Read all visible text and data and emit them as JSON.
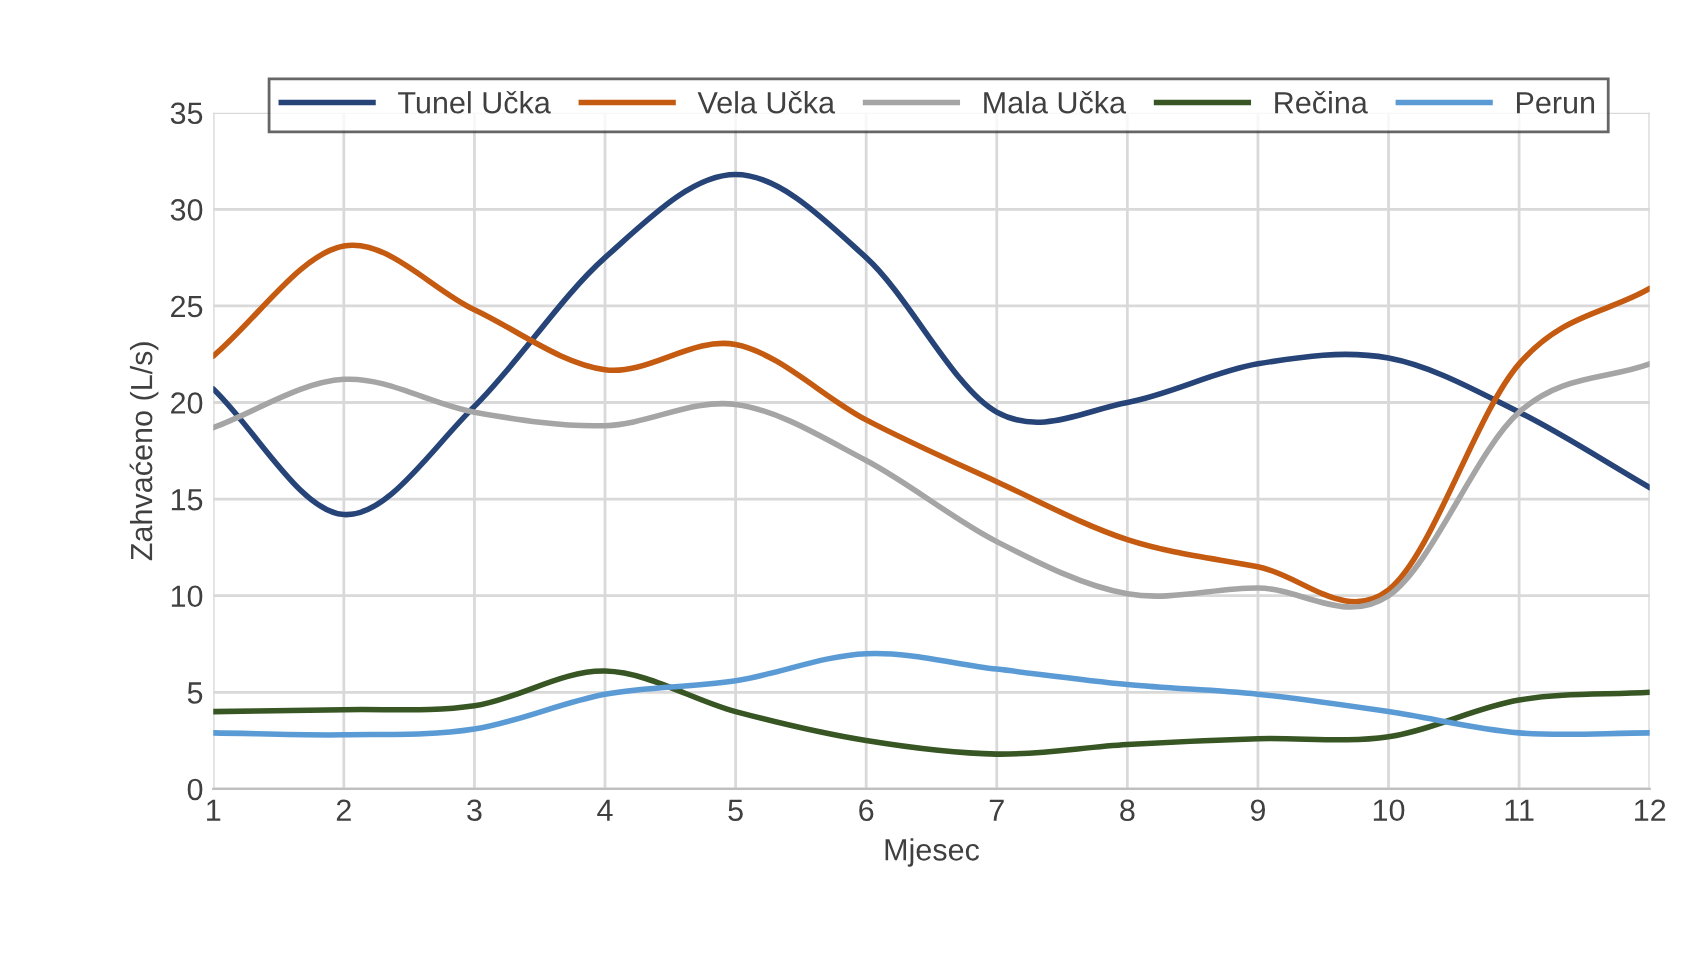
{
  "chart_data": {
    "type": "line",
    "xlabel": "Mjesec",
    "ylabel": "Zahvaćeno (L/s)",
    "x": [
      1,
      2,
      3,
      4,
      5,
      6,
      7,
      8,
      9,
      10,
      11,
      12
    ],
    "series": [
      {
        "name": "Tunel Učka",
        "color": "#264478",
        "values": [
          20.7,
          14.2,
          19.8,
          27.5,
          31.8,
          27.5,
          19.5,
          20,
          22,
          22.3,
          19.5,
          15.6
        ]
      },
      {
        "name": "Vela Učka",
        "color": "#c55a11",
        "values": [
          22.4,
          28.1,
          24.8,
          21.7,
          23,
          19.1,
          15.9,
          12.9,
          11.5,
          10.3,
          22,
          25.9
        ]
      },
      {
        "name": "Mala Učka",
        "color": "#a5a5a5",
        "values": [
          18.7,
          21.2,
          19.5,
          18.8,
          19.9,
          17,
          12.8,
          10.1,
          10.4,
          10,
          19.5,
          22
        ]
      },
      {
        "name": "Rečina",
        "color": "#375623",
        "values": [
          4,
          4.1,
          4.3,
          6.1,
          4,
          2.5,
          1.8,
          2.3,
          2.6,
          2.7,
          4.6,
          5
        ]
      },
      {
        "name": "Perun",
        "color": "#5b9bd5",
        "values": [
          2.9,
          2.8,
          3.1,
          4.9,
          5.6,
          7,
          6.2,
          5.4,
          4.9,
          4,
          2.9,
          2.9
        ]
      }
    ],
    "xlim": [
      1,
      12
    ],
    "xticks": [
      1,
      2,
      3,
      4,
      5,
      6,
      7,
      8,
      9,
      10,
      11,
      12
    ],
    "ylim": [
      0,
      35
    ],
    "yticks": [
      0,
      5,
      10,
      15,
      20,
      25,
      30,
      35
    ],
    "grid": true,
    "legend": "top",
    "marker": "none",
    "line_style": "solid"
  }
}
